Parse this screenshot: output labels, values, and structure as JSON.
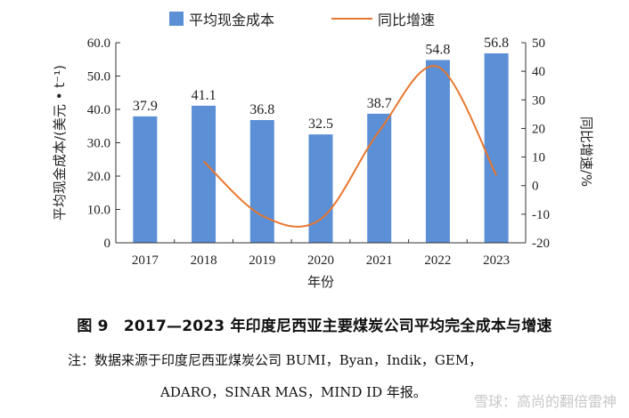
{
  "chart_data": {
    "type": "bar+line",
    "categories": [
      "2017",
      "2018",
      "2019",
      "2020",
      "2021",
      "2022",
      "2023"
    ],
    "series": [
      {
        "name": "平均现金成本",
        "type": "bar",
        "axis": "left",
        "color": "#5b8fd6",
        "values": [
          37.9,
          41.1,
          36.8,
          32.5,
          38.7,
          54.8,
          56.8
        ],
        "labels": [
          "37.9",
          "41.1",
          "36.8",
          "32.5",
          "38.7",
          "54.8",
          "56.8"
        ]
      },
      {
        "name": "同比增速",
        "type": "line",
        "axis": "right",
        "color": "#e8772e",
        "x": [
          "2018",
          "2019",
          "2020",
          "2021",
          "2022",
          "2023"
        ],
        "values": [
          8.5,
          -10.5,
          -11.7,
          19.1,
          41.6,
          3.6
        ]
      }
    ],
    "left_axis": {
      "title": "平均现金成本/(美元 • t⁻¹)",
      "min": 0,
      "max": 60,
      "ticks": [
        "0",
        "10.0",
        "20.0",
        "30.0",
        "40.0",
        "50.0",
        "60.0"
      ]
    },
    "right_axis": {
      "title": "同比增速/%",
      "min": -20,
      "max": 50,
      "ticks": [
        "-20",
        "-10",
        "0",
        "10",
        "20",
        "30",
        "40",
        "50"
      ]
    },
    "xlabel": "年份",
    "legend": [
      "平均现金成本",
      "同比增速"
    ]
  },
  "caption": "图 9　2017—2023 年印度尼西亚主要煤炭公司平均完全成本与增速",
  "note_line1": "注：数据来源于印度尼西亚煤炭公司 BUMI，Byan，Indik，GEM，",
  "note_line2": "ADARO，SINAR MAS，MIND ID 年报。",
  "watermark": "雪球：高尚的翻倍雷神"
}
